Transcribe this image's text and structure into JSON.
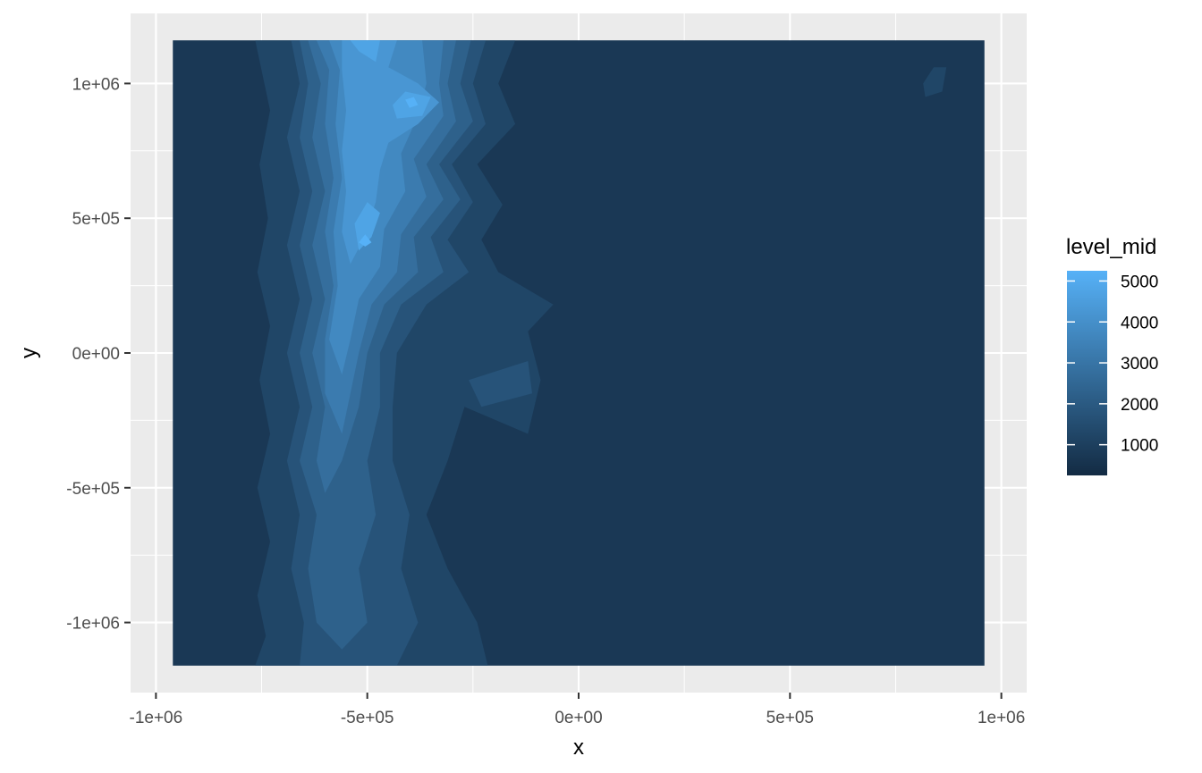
{
  "chart_data": {
    "type": "filled_contour",
    "xlabel": "x",
    "ylabel": "y",
    "xlim": [
      -1060000,
      1060000
    ],
    "ylim": [
      -1260000,
      1260000
    ],
    "data_extent": {
      "x": [
        -960000,
        960000
      ],
      "y": [
        -1160000,
        1160000
      ]
    },
    "x_ticks": [
      {
        "value": -1000000,
        "label": "-1e+06"
      },
      {
        "value": -500000,
        "label": "-5e+05"
      },
      {
        "value": 0,
        "label": "0e+00"
      },
      {
        "value": 500000,
        "label": "5e+05"
      },
      {
        "value": 1000000,
        "label": "1e+06"
      }
    ],
    "y_ticks": [
      {
        "value": -1000000,
        "label": "-1e+06"
      },
      {
        "value": -500000,
        "label": "-5e+05"
      },
      {
        "value": 0,
        "label": "0e+00"
      },
      {
        "value": 500000,
        "label": "5e+05"
      },
      {
        "value": 1000000,
        "label": "1e+06"
      }
    ],
    "legend": {
      "title": "level_mid",
      "position": "right",
      "range": [
        250,
        5250
      ],
      "breaks": [
        {
          "value": 1000,
          "label": "1000"
        },
        {
          "value": 2000,
          "label": "2000"
        },
        {
          "value": 3000,
          "label": "3000"
        },
        {
          "value": 4000,
          "label": "4000"
        },
        {
          "value": 5000,
          "label": "5000"
        }
      ],
      "colors": {
        "low": "#132B43",
        "high": "#56B1F7"
      }
    },
    "grid": true,
    "background": "#EBEBEB",
    "contour_levels": [
      {
        "level_mid": 1250,
        "polygons": [
          [
            [
              -765000,
              1160000
            ],
            [
              -150000,
              1160000
            ],
            [
              -190000,
              1000000
            ],
            [
              -150000,
              850000
            ],
            [
              -240000,
              700000
            ],
            [
              -180000,
              550000
            ],
            [
              -230000,
              420000
            ],
            [
              -190000,
              300000
            ],
            [
              -60000,
              180000
            ],
            [
              -120000,
              80000
            ],
            [
              -90000,
              -100000
            ],
            [
              -120000,
              -300000
            ],
            [
              -270000,
              -200000
            ],
            [
              -310000,
              -400000
            ],
            [
              -360000,
              -600000
            ],
            [
              -310000,
              -800000
            ],
            [
              -240000,
              -1000000
            ],
            [
              -215000,
              -1160000
            ],
            [
              -765000,
              -1160000
            ],
            [
              -740000,
              -1050000
            ],
            [
              -760000,
              -900000
            ],
            [
              -730000,
              -700000
            ],
            [
              -760000,
              -500000
            ],
            [
              -730000,
              -300000
            ],
            [
              -755000,
              -100000
            ],
            [
              -730000,
              100000
            ],
            [
              -760000,
              300000
            ],
            [
              -735000,
              500000
            ],
            [
              -755000,
              700000
            ],
            [
              -730000,
              900000
            ]
          ],
          [
            [
              840000,
              1060000
            ],
            [
              870000,
              1060000
            ],
            [
              860000,
              970000
            ],
            [
              820000,
              950000
            ],
            [
              815000,
              1000000
            ]
          ]
        ]
      },
      {
        "level_mid": 1750,
        "polygons": [
          [
            [
              -680000,
              1160000
            ],
            [
              -220000,
              1160000
            ],
            [
              -250000,
              1000000
            ],
            [
              -220000,
              850000
            ],
            [
              -300000,
              700000
            ],
            [
              -250000,
              560000
            ],
            [
              -310000,
              420000
            ],
            [
              -260000,
              300000
            ],
            [
              -360000,
              180000
            ],
            [
              -430000,
              0
            ],
            [
              -440000,
              -200000
            ],
            [
              -440000,
              -400000
            ],
            [
              -400000,
              -600000
            ],
            [
              -420000,
              -800000
            ],
            [
              -380000,
              -1000000
            ],
            [
              -430000,
              -1160000
            ],
            [
              -660000,
              -1160000
            ],
            [
              -650000,
              -1000000
            ],
            [
              -680000,
              -800000
            ],
            [
              -660000,
              -600000
            ],
            [
              -690000,
              -400000
            ],
            [
              -660000,
              -200000
            ],
            [
              -690000,
              0
            ],
            [
              -660000,
              200000
            ],
            [
              -690000,
              400000
            ],
            [
              -660000,
              600000
            ],
            [
              -690000,
              800000
            ],
            [
              -660000,
              1000000
            ]
          ],
          [
            [
              -260000,
              -100000
            ],
            [
              -120000,
              -30000
            ],
            [
              -110000,
              -150000
            ],
            [
              -230000,
              -200000
            ]
          ]
        ]
      },
      {
        "level_mid": 2250,
        "polygons": [
          [
            [
              -660000,
              1160000
            ],
            [
              -255000,
              1160000
            ],
            [
              -280000,
              1000000
            ],
            [
              -250000,
              860000
            ],
            [
              -330000,
              700000
            ],
            [
              -280000,
              570000
            ],
            [
              -350000,
              430000
            ],
            [
              -320000,
              300000
            ],
            [
              -420000,
              180000
            ],
            [
              -470000,
              0
            ],
            [
              -470000,
              -200000
            ],
            [
              -500000,
              -400000
            ],
            [
              -480000,
              -600000
            ],
            [
              -520000,
              -800000
            ],
            [
              -500000,
              -1000000
            ],
            [
              -560000,
              -1100000
            ],
            [
              -620000,
              -1000000
            ],
            [
              -640000,
              -800000
            ],
            [
              -620000,
              -600000
            ],
            [
              -660000,
              -400000
            ],
            [
              -630000,
              -200000
            ],
            [
              -660000,
              0
            ],
            [
              -630000,
              200000
            ],
            [
              -660000,
              400000
            ],
            [
              -630000,
              600000
            ],
            [
              -660000,
              800000
            ],
            [
              -640000,
              1000000
            ]
          ]
        ]
      },
      {
        "level_mid": 2750,
        "polygons": [
          [
            [
              -640000,
              1160000
            ],
            [
              -290000,
              1160000
            ],
            [
              -310000,
              1000000
            ],
            [
              -290000,
              860000
            ],
            [
              -360000,
              700000
            ],
            [
              -320000,
              570000
            ],
            [
              -390000,
              430000
            ],
            [
              -380000,
              300000
            ],
            [
              -460000,
              180000
            ],
            [
              -500000,
              0
            ],
            [
              -520000,
              -200000
            ],
            [
              -560000,
              -400000
            ],
            [
              -600000,
              -520000
            ],
            [
              -620000,
              -400000
            ],
            [
              -600000,
              -200000
            ],
            [
              -630000,
              0
            ],
            [
              -600000,
              200000
            ],
            [
              -630000,
              400000
            ],
            [
              -600000,
              600000
            ],
            [
              -630000,
              800000
            ],
            [
              -610000,
              1000000
            ]
          ]
        ]
      },
      {
        "level_mid": 3250,
        "polygons": [
          [
            [
              -620000,
              1160000
            ],
            [
              -320000,
              1160000
            ],
            [
              -330000,
              1000000
            ],
            [
              -320000,
              880000
            ],
            [
              -390000,
              720000
            ],
            [
              -360000,
              580000
            ],
            [
              -420000,
              440000
            ],
            [
              -430000,
              300000
            ],
            [
              -490000,
              180000
            ],
            [
              -520000,
              0
            ],
            [
              -540000,
              -150000
            ],
            [
              -560000,
              -300000
            ],
            [
              -600000,
              -150000
            ],
            [
              -600000,
              50000
            ],
            [
              -580000,
              250000
            ],
            [
              -600000,
              450000
            ],
            [
              -580000,
              650000
            ],
            [
              -600000,
              850000
            ],
            [
              -590000,
              1050000
            ]
          ]
        ]
      },
      {
        "level_mid": 3750,
        "polygons": [
          [
            [
              -590000,
              1160000
            ],
            [
              -370000,
              1160000
            ],
            [
              -360000,
              1000000
            ],
            [
              -380000,
              880000
            ],
            [
              -420000,
              740000
            ],
            [
              -410000,
              600000
            ],
            [
              -460000,
              460000
            ],
            [
              -470000,
              320000
            ],
            [
              -520000,
              200000
            ],
            [
              -540000,
              50000
            ],
            [
              -560000,
              -80000
            ],
            [
              -590000,
              50000
            ],
            [
              -570000,
              250000
            ],
            [
              -580000,
              450000
            ],
            [
              -560000,
              650000
            ],
            [
              -575000,
              850000
            ],
            [
              -565000,
              1050000
            ]
          ]
        ]
      },
      {
        "level_mid": 4250,
        "polygons": [
          [
            [
              -560000,
              1160000
            ],
            [
              -430000,
              1160000
            ],
            [
              -450000,
              1060000
            ],
            [
              -380000,
              1000000
            ],
            [
              -330000,
              930000
            ],
            [
              -380000,
              850000
            ],
            [
              -450000,
              780000
            ],
            [
              -470000,
              680000
            ],
            [
              -480000,
              560000
            ],
            [
              -510000,
              420000
            ],
            [
              -540000,
              330000
            ],
            [
              -560000,
              450000
            ],
            [
              -550000,
              600000
            ],
            [
              -560000,
              750000
            ],
            [
              -550000,
              900000
            ],
            [
              -560000,
              1050000
            ]
          ]
        ]
      },
      {
        "level_mid": 4750,
        "polygons": [
          [
            [
              -540000,
              1160000
            ],
            [
              -470000,
              1160000
            ],
            [
              -480000,
              1080000
            ],
            [
              -520000,
              1120000
            ]
          ],
          [
            [
              -410000,
              970000
            ],
            [
              -350000,
              950000
            ],
            [
              -370000,
              880000
            ],
            [
              -430000,
              870000
            ],
            [
              -440000,
              920000
            ]
          ],
          [
            [
              -520000,
              380000
            ],
            [
              -490000,
              430000
            ],
            [
              -470000,
              520000
            ],
            [
              -500000,
              560000
            ],
            [
              -530000,
              480000
            ]
          ]
        ]
      },
      {
        "level_mid": 5250,
        "polygons": [
          [
            [
              -410000,
              940000
            ],
            [
              -390000,
              950000
            ],
            [
              -380000,
              920000
            ],
            [
              -400000,
              910000
            ]
          ],
          [
            [
              -520000,
              410000
            ],
            [
              -505000,
              440000
            ],
            [
              -490000,
              410000
            ],
            [
              -505000,
              395000
            ]
          ]
        ]
      }
    ]
  }
}
